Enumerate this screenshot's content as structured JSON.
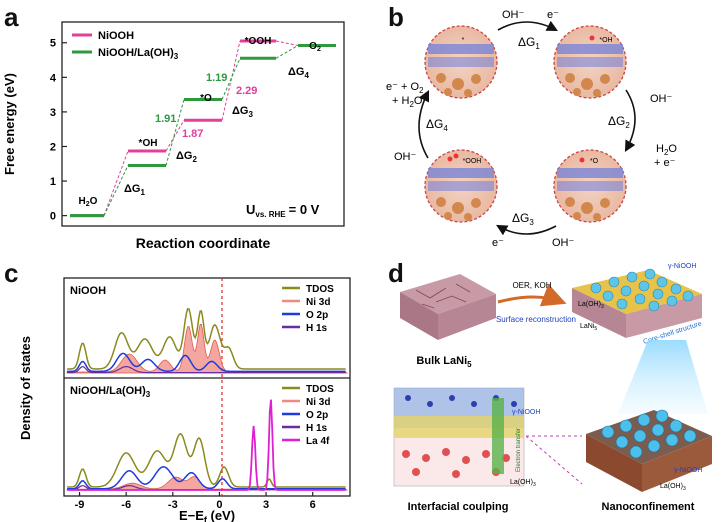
{
  "panel_labels": {
    "a": "a",
    "b": "b",
    "c": "c",
    "d": "d"
  },
  "panel_a": {
    "ylabel": "Free energy (eV)",
    "xlabel": "Reaction coordinate",
    "legend": [
      "NiOOH",
      "NiOOH/La(OH)3"
    ],
    "yticks": [
      "0",
      "1",
      "2",
      "3",
      "4",
      "5"
    ],
    "states": [
      "H2O",
      "*OH",
      "*O",
      "*OOH",
      "O2"
    ],
    "dg_labels": [
      "ΔG1",
      "ΔG2",
      "ΔG3",
      "ΔG4"
    ],
    "values_niooh": [
      "1.87",
      "2.29"
    ],
    "values_la": [
      "1.91",
      "1.19"
    ],
    "u_label": "U",
    "u_sub": "vs. RHE",
    "u_value": "= 0 V",
    "colors": {
      "niooh": "#e0409a",
      "la": "#2e9a3e"
    }
  },
  "chart_data": {
    "type": "line",
    "title": "",
    "xlabel": "Reaction coordinate",
    "ylabel": "Free energy (eV)",
    "ylim": [
      -0.3,
      5.6
    ],
    "categories": [
      "H2O",
      "*OH",
      "*O",
      "*OOH",
      "O2"
    ],
    "series": [
      {
        "name": "NiOOH",
        "values": [
          0,
          1.87,
          2.76,
          5.05,
          4.92
        ]
      },
      {
        "name": "NiOOH/La(OH)3",
        "values": [
          0,
          1.45,
          3.36,
          4.55,
          4.92
        ]
      }
    ]
  },
  "panel_b": {
    "top_left": "OH⁻",
    "top_right": "e⁻",
    "dg1": "ΔG1",
    "right_in": "OH⁻",
    "dg2": "ΔG2",
    "right_out": "H2O + e⁻",
    "bottom_left": "e⁻",
    "bottom_right": "OH⁻",
    "dg3": "ΔG3",
    "left_in": "OH⁻",
    "dg4": "ΔG4",
    "left_out": "e⁻ + O2 + H2O",
    "site_labels": [
      "*",
      "*OH",
      "*O",
      "*OOH"
    ]
  },
  "panel_c": {
    "ylabel": "Density of states",
    "xlabel": "E−Ef (eV)",
    "xticks": [
      "-9",
      "-6",
      "-3",
      "0",
      "3",
      "6"
    ],
    "top_title": "NiOOH",
    "bottom_title": "NiOOH/La(OH)3",
    "legend_top": [
      "TDOS",
      "Ni 3d",
      "O 2p",
      "H 1s"
    ],
    "legend_bottom": [
      "TDOS",
      "Ni 3d",
      "O 2p",
      "H 1s",
      "La 4f"
    ],
    "colors": {
      "tdos": "#8a8a1e",
      "ni": "#f08a80",
      "o": "#1e3cdc",
      "h": "#6a2ca0",
      "la": "#e020d0"
    }
  },
  "panel_d": {
    "bulk_label": "Bulk LaNi5",
    "arrow_top": "OER, KOH",
    "arrow_bottom": "Surface reconstruction",
    "gamma_top": "γ-NiOOH",
    "laoh": "La(OH)3",
    "lani": "LaNi5",
    "core_shell": "Core-shell structure",
    "interfacial": "Interfacial coulping",
    "nano": "Nanoconfinement",
    "gamma_inset": "γ-NiOOH",
    "electron_transfer": "Electron transfer",
    "laoh_inset": "La(OH)3",
    "gamma_nano": "γ-NiOOH",
    "laoh_nano": "La(OH)3"
  }
}
